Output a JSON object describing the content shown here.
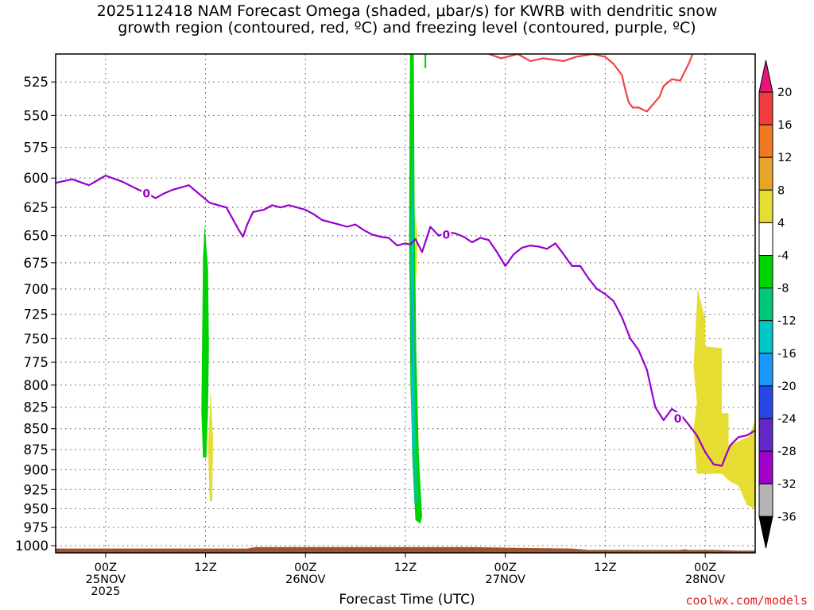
{
  "title": "2025112418 NAM Forecast Omega (shaded, μbar/s) for KWRB with dendritic snow\ngrowth region (contoured, red, ºC) and freezing level (contoured, purple, ºC)",
  "credit": "coolwx.com/models",
  "chart_data": {
    "type": "heatmap",
    "title": "2025112418 NAM Forecast Omega (shaded, μbar/s) for KWRB with dendritic snow growth region (contoured, red, ºC) and freezing level (contoured, purple, ºC)",
    "xlabel": "Forecast Time (UTC)",
    "x_unit": "hours since 2025-11-24 18Z",
    "xlim": [
      0,
      84
    ],
    "x_ticks": [
      {
        "x": 6,
        "lines": [
          "00Z",
          "25NOV",
          "2025"
        ]
      },
      {
        "x": 18,
        "lines": [
          "12Z"
        ]
      },
      {
        "x": 30,
        "lines": [
          "00Z",
          "26NOV"
        ]
      },
      {
        "x": 42,
        "lines": [
          "12Z"
        ]
      },
      {
        "x": 54,
        "lines": [
          "00Z",
          "27NOV"
        ]
      },
      {
        "x": 66,
        "lines": [
          "12Z"
        ]
      },
      {
        "x": 78,
        "lines": [
          "00Z",
          "28NOV"
        ]
      }
    ],
    "ylabel": "",
    "y_scale": "inverted-log-pressure",
    "ylim": [
      1010,
      505
    ],
    "y_ticks": [
      525,
      550,
      575,
      600,
      625,
      650,
      675,
      700,
      725,
      750,
      775,
      800,
      825,
      850,
      875,
      900,
      925,
      950,
      975,
      1000
    ],
    "grid": true,
    "colorbar": {
      "label": "μbar/s",
      "tick_labels": [
        "20",
        "16",
        "12",
        "8",
        "4",
        "-4",
        "-8",
        "-12",
        "-16",
        "-20",
        "-24",
        "-28",
        "-32",
        "-36"
      ],
      "bins": [
        {
          "min": 16,
          "max": 20,
          "color": "#f03c3c"
        },
        {
          "min": 12,
          "max": 16,
          "color": "#f07820"
        },
        {
          "min": 8,
          "max": 12,
          "color": "#e8a428"
        },
        {
          "min": 4,
          "max": 8,
          "color": "#e6dc32"
        },
        {
          "min": -4,
          "max": 4,
          "color": "#ffffff"
        },
        {
          "min": -8,
          "max": -4,
          "color": "#00d200"
        },
        {
          "min": -12,
          "max": -8,
          "color": "#00c878"
        },
        {
          "min": -16,
          "max": -12,
          "color": "#00c8c8"
        },
        {
          "min": -20,
          "max": -16,
          "color": "#1e96ff"
        },
        {
          "min": -24,
          "max": -20,
          "color": "#2846e6"
        },
        {
          "min": -28,
          "max": -24,
          "color": "#6428c8"
        },
        {
          "min": -32,
          "max": -28,
          "color": "#a000c8"
        },
        {
          "min": -36,
          "max": -32,
          "color": "#b4b4b4"
        }
      ],
      "over_color": "#e8147a",
      "under_color": "#000000"
    },
    "omega_regions": [
      {
        "value_bin": "-8..-4",
        "color": "#00d200",
        "points": [
          [
            17.9,
            640
          ],
          [
            18.3,
            680
          ],
          [
            18.4,
            760
          ],
          [
            18.3,
            830
          ],
          [
            18.1,
            885
          ],
          [
            17.7,
            885
          ],
          [
            17.5,
            830
          ],
          [
            17.6,
            740
          ],
          [
            17.7,
            670
          ]
        ]
      },
      {
        "value_bin": "4..8",
        "color": "#e6dc32",
        "points": [
          [
            18.6,
            805
          ],
          [
            18.9,
            860
          ],
          [
            18.8,
            940
          ],
          [
            18.5,
            940
          ],
          [
            18.3,
            870
          ],
          [
            18.5,
            830
          ]
        ]
      },
      {
        "value_bin": "-8..-4",
        "color": "#00d200",
        "points": [
          [
            42.55,
            505
          ],
          [
            43.0,
            505
          ],
          [
            43.1,
            620
          ],
          [
            43.3,
            760
          ],
          [
            43.6,
            880
          ],
          [
            44.0,
            960
          ],
          [
            43.8,
            970
          ],
          [
            43.2,
            965
          ],
          [
            42.9,
            900
          ],
          [
            42.6,
            800
          ],
          [
            42.45,
            650
          ],
          [
            42.5,
            560
          ]
        ]
      },
      {
        "value_bin": "-12..-8",
        "color": "#00c878",
        "points": [
          [
            42.8,
            560
          ],
          [
            43.0,
            640
          ],
          [
            43.1,
            760
          ],
          [
            43.3,
            880
          ],
          [
            43.6,
            940
          ],
          [
            43.1,
            945
          ],
          [
            42.8,
            880
          ],
          [
            42.65,
            760
          ],
          [
            42.6,
            640
          ]
        ]
      },
      {
        "value_bin": "-16..-12",
        "color": "#00c8c8",
        "points": [
          [
            42.85,
            600
          ],
          [
            42.95,
            700
          ],
          [
            43.0,
            790
          ],
          [
            43.1,
            870
          ],
          [
            42.8,
            870
          ],
          [
            42.7,
            790
          ],
          [
            42.65,
            700
          ]
        ]
      },
      {
        "value_bin": "-20..-16",
        "color": "#1e96ff",
        "points": [
          [
            42.8,
            680
          ],
          [
            42.9,
            740
          ],
          [
            42.85,
            780
          ],
          [
            42.7,
            780
          ],
          [
            42.65,
            730
          ]
        ]
      },
      {
        "value_bin": "4..8",
        "color": "#e6dc32",
        "points": [
          [
            43.2,
            630
          ],
          [
            43.45,
            650
          ],
          [
            43.35,
            690
          ],
          [
            43.2,
            680
          ]
        ]
      },
      {
        "value_bin": "-8..-4",
        "color": "#00d200",
        "points": [
          [
            44.3,
            505
          ],
          [
            44.5,
            505
          ],
          [
            44.5,
            515
          ],
          [
            44.3,
            515
          ]
        ]
      },
      {
        "value_bin": "4..8",
        "color": "#e6dc32",
        "points": [
          [
            77.1,
            700
          ],
          [
            78.0,
            730
          ],
          [
            78.0,
            758
          ],
          [
            80.0,
            760
          ],
          [
            80.0,
            832
          ],
          [
            80.8,
            832
          ],
          [
            80.8,
            870
          ],
          [
            83.2,
            860
          ],
          [
            84,
            840
          ],
          [
            84,
            950
          ],
          [
            83,
            945
          ],
          [
            82,
            920
          ],
          [
            81,
            915
          ],
          [
            80,
            905
          ],
          [
            77,
            905
          ],
          [
            76.6,
            850
          ],
          [
            77.0,
            820
          ],
          [
            76.6,
            780
          ]
        ]
      }
    ],
    "contours": [
      {
        "name": "dendritic snow growth region",
        "color": "#ee4444",
        "label": "",
        "points": [
          [
            52.0,
            505
          ],
          [
            53.5,
            508
          ],
          [
            55.5,
            505
          ],
          [
            57.0,
            510
          ],
          [
            58.5,
            508
          ],
          [
            61,
            510
          ],
          [
            62.5,
            507
          ],
          [
            64.5,
            505
          ],
          [
            66,
            507
          ],
          [
            67,
            512
          ],
          [
            68,
            520
          ],
          [
            68.3,
            528
          ],
          [
            68.8,
            540
          ],
          [
            69.3,
            544
          ],
          [
            70,
            544
          ],
          [
            71,
            547
          ],
          [
            72.5,
            536
          ],
          [
            73,
            528
          ],
          [
            74,
            523
          ],
          [
            75,
            524
          ],
          [
            76,
            512
          ],
          [
            76.5,
            505
          ]
        ]
      },
      {
        "name": "freezing level",
        "color": "#9900cc",
        "label": "0",
        "points": [
          [
            0,
            604
          ],
          [
            2,
            601
          ],
          [
            4,
            606
          ],
          [
            6,
            598
          ],
          [
            8,
            603
          ],
          [
            10,
            610
          ],
          [
            11,
            613
          ],
          [
            12,
            617
          ],
          [
            13,
            613
          ],
          [
            14,
            610
          ],
          [
            16,
            606
          ],
          [
            17,
            612
          ],
          [
            18.5,
            621
          ],
          [
            20.5,
            625
          ],
          [
            22,
            645
          ],
          [
            22.5,
            651
          ],
          [
            23,
            640
          ],
          [
            23.7,
            629
          ],
          [
            25,
            627
          ],
          [
            26,
            623
          ],
          [
            27,
            625
          ],
          [
            28,
            623
          ],
          [
            29,
            625
          ],
          [
            30,
            627
          ],
          [
            31,
            631
          ],
          [
            32,
            636
          ],
          [
            34,
            640
          ],
          [
            35,
            642
          ],
          [
            36,
            640
          ],
          [
            37,
            645
          ],
          [
            38,
            649
          ],
          [
            39,
            651
          ],
          [
            40,
            652
          ],
          [
            41,
            659
          ],
          [
            42,
            657
          ],
          [
            42.6,
            658
          ],
          [
            43.2,
            653
          ],
          [
            44,
            665
          ],
          [
            45,
            642
          ],
          [
            46,
            650
          ],
          [
            47,
            647
          ],
          [
            48,
            648
          ],
          [
            49,
            651
          ],
          [
            50,
            656
          ],
          [
            51,
            652
          ],
          [
            52,
            654
          ],
          [
            53,
            665
          ],
          [
            54,
            678
          ],
          [
            55,
            667
          ],
          [
            56,
            661
          ],
          [
            57,
            659
          ],
          [
            58,
            660
          ],
          [
            59,
            662
          ],
          [
            60,
            657
          ],
          [
            61,
            667
          ],
          [
            62,
            678
          ],
          [
            63,
            678
          ],
          [
            64,
            690
          ],
          [
            65,
            700
          ],
          [
            66,
            705
          ],
          [
            67,
            712
          ],
          [
            68,
            728
          ],
          [
            69,
            750
          ],
          [
            70,
            762
          ],
          [
            71,
            783
          ],
          [
            72,
            825
          ],
          [
            73,
            840
          ],
          [
            74,
            827
          ],
          [
            75,
            833
          ],
          [
            76,
            845
          ],
          [
            77,
            858
          ],
          [
            78,
            878
          ],
          [
            79,
            893
          ],
          [
            80,
            895
          ],
          [
            80.5,
            882
          ],
          [
            81,
            870
          ],
          [
            82,
            860
          ],
          [
            83,
            858
          ],
          [
            84,
            852
          ]
        ]
      }
    ],
    "terrain": {
      "color": "#a0522d",
      "surface_pressure": [
        [
          0,
          1004
        ],
        [
          6,
          1004
        ],
        [
          23,
          1004
        ],
        [
          24,
          1002
        ],
        [
          50,
          1002
        ],
        [
          55,
          1003
        ],
        [
          62,
          1004
        ],
        [
          64,
          1006
        ],
        [
          75,
          1006
        ],
        [
          75.5,
          1005
        ],
        [
          76,
          1006
        ],
        [
          79,
          1006
        ],
        [
          82,
          1007
        ],
        [
          84,
          1007
        ]
      ]
    }
  }
}
